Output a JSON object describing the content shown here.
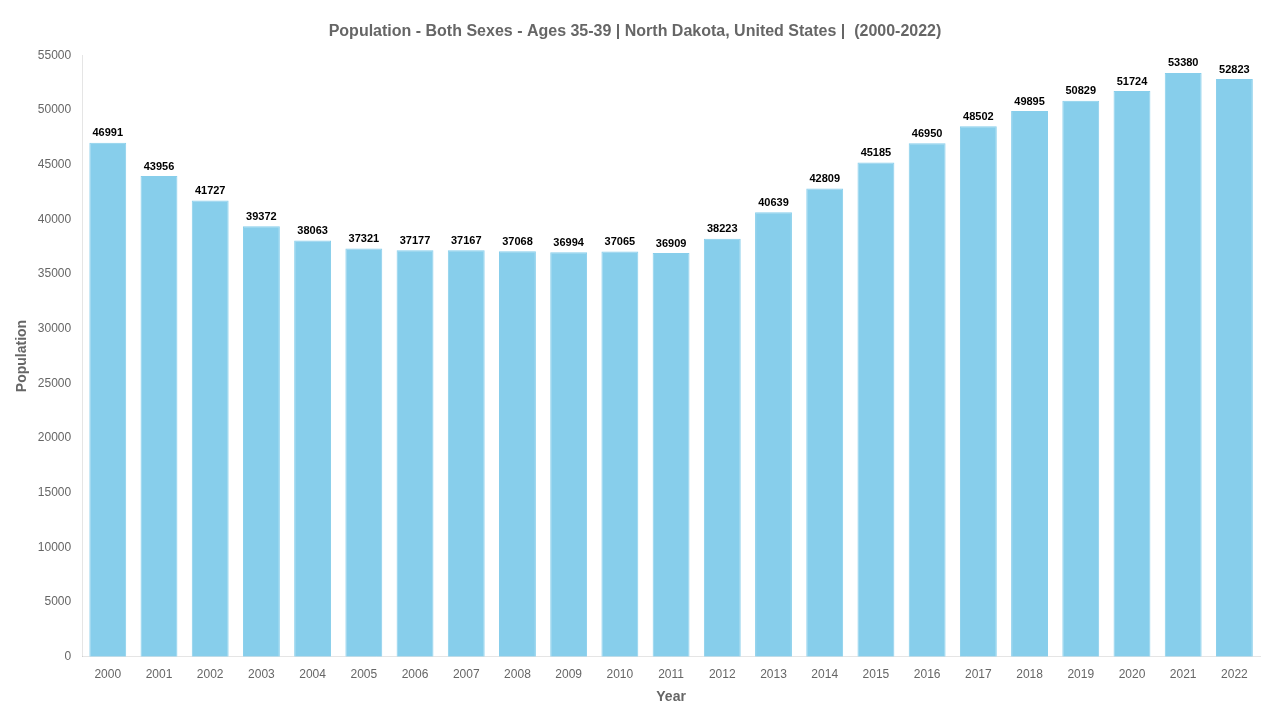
{
  "chart_data": {
    "type": "bar",
    "title": "Population - Both Sexes - Ages 35-39 | North Dakota, United States |  (2000-2022)",
    "xlabel": "Year",
    "ylabel": "Population",
    "categories": [
      "2000",
      "2001",
      "2002",
      "2003",
      "2004",
      "2005",
      "2006",
      "2007",
      "2008",
      "2009",
      "2010",
      "2011",
      "2012",
      "2013",
      "2014",
      "2015",
      "2016",
      "2017",
      "2018",
      "2019",
      "2020",
      "2021",
      "2022"
    ],
    "values": [
      46991,
      43956,
      41727,
      39372,
      38063,
      37321,
      37177,
      37167,
      37068,
      36994,
      37065,
      36909,
      38223,
      40639,
      42809,
      45185,
      46950,
      48502,
      49895,
      50829,
      51724,
      53380,
      52823
    ],
    "color": "#87CEEB",
    "ylim": [
      0,
      55000
    ],
    "yticks": [
      0,
      5000,
      10000,
      15000,
      20000,
      25000,
      30000,
      35000,
      40000,
      45000,
      50000,
      55000
    ],
    "grid": false,
    "data_labels": true
  }
}
